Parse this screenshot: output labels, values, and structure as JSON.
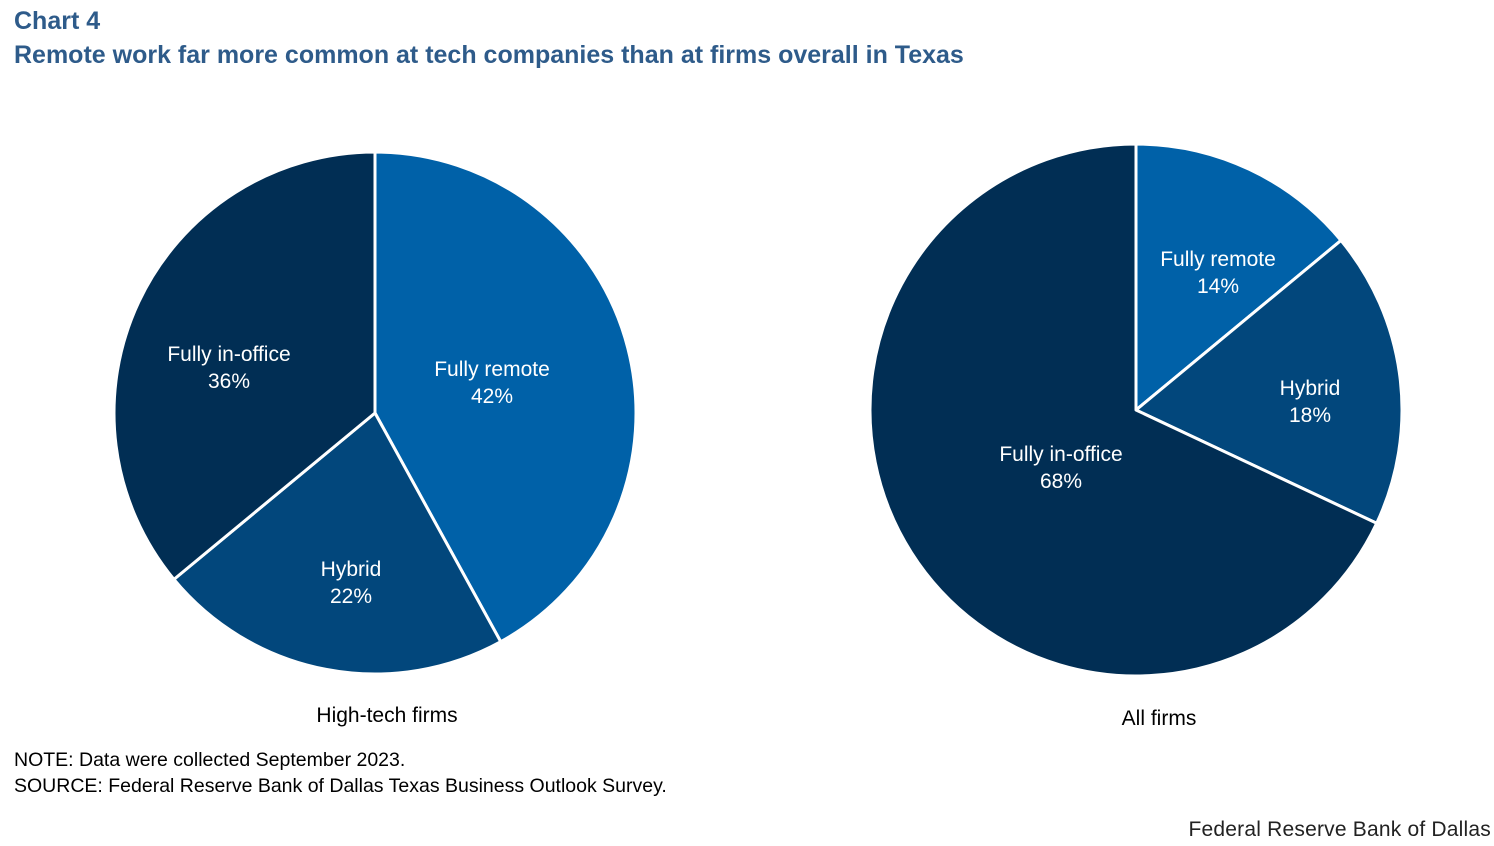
{
  "header": {
    "chart_label": "Chart 4",
    "title": "Remote work far more common at tech companies than at firms overall in Texas"
  },
  "colors": {
    "fully_remote": "#0061a8",
    "hybrid": "#02477c",
    "fully_in_office": "#012e54",
    "separator": "#ffffff"
  },
  "chart_data": [
    {
      "type": "pie",
      "title": "High-tech firms",
      "slices": [
        {
          "name": "Fully remote",
          "value": 42,
          "label": "42%",
          "color_key": "fully_remote"
        },
        {
          "name": "Hybrid",
          "value": 22,
          "label": "22%",
          "color_key": "hybrid"
        },
        {
          "name": "Fully in-office",
          "value": 36,
          "label": "36%",
          "color_key": "fully_in_office"
        }
      ]
    },
    {
      "type": "pie",
      "title": "All firms",
      "slices": [
        {
          "name": "Fully remote",
          "value": 14,
          "label": "14%",
          "color_key": "fully_remote"
        },
        {
          "name": "Hybrid",
          "value": 18,
          "label": "18%",
          "color_key": "hybrid"
        },
        {
          "name": "Fully in-office",
          "value": 68,
          "label": "68%",
          "color_key": "fully_in_office"
        }
      ]
    }
  ],
  "footer": {
    "note": "NOTE: Data were collected September 2023.",
    "source": "SOURCE: Federal Reserve Bank of Dallas Texas Business Outlook Survey.",
    "credit": "Federal Reserve Bank of Dallas"
  }
}
